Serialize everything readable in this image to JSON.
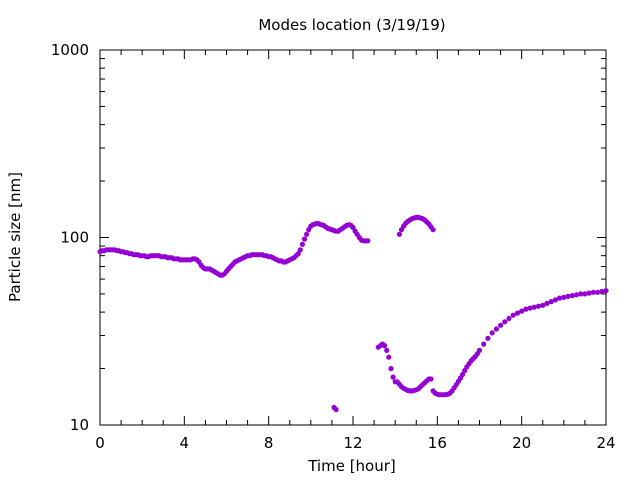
{
  "chart_data": {
    "type": "scatter",
    "title": "Modes location (3/19/19)",
    "xlabel": "Time [hour]",
    "ylabel": "Particle size [nm]",
    "xlim": [
      0,
      24
    ],
    "ylim": [
      10,
      1000
    ],
    "yscale": "log",
    "xticks": [
      "0",
      "4",
      "8",
      "12",
      "16",
      "20",
      "24"
    ],
    "xtick_values": [
      0,
      4,
      8,
      12,
      16,
      20,
      24
    ],
    "yticks": [
      "10",
      "100",
      "1000"
    ],
    "ytick_values": [
      10,
      100,
      1000
    ],
    "grid": false,
    "legend": "none",
    "marker_color": "#9400d3",
    "series": [
      {
        "x": [
          0.0,
          0.1,
          0.2,
          0.3,
          0.4,
          0.5,
          0.6,
          0.7,
          0.8,
          0.9,
          1.0,
          1.1,
          1.2,
          1.3,
          1.4,
          1.5,
          1.6,
          1.7,
          1.8,
          1.9,
          2.0,
          2.1,
          2.2,
          2.3,
          2.4,
          2.5,
          2.6,
          2.7,
          2.8,
          2.9,
          3.0,
          3.1,
          3.2,
          3.3,
          3.4,
          3.5,
          3.6,
          3.7,
          3.8,
          3.9,
          4.0,
          4.1,
          4.2,
          4.3,
          4.4,
          4.5,
          4.6,
          4.7,
          4.8,
          4.9,
          5.0,
          5.1,
          5.2,
          5.3,
          5.4,
          5.5,
          5.6,
          5.7,
          5.8,
          5.9,
          6.0,
          6.1,
          6.2,
          6.3,
          6.4,
          6.5,
          6.6,
          6.7,
          6.8,
          6.9,
          7.0,
          7.1,
          7.2,
          7.3,
          7.4,
          7.5,
          7.6,
          7.7,
          7.8,
          7.9,
          8.0,
          8.1,
          8.2,
          8.3,
          8.4,
          8.5,
          8.6,
          8.7,
          8.8,
          8.9,
          9.0,
          9.1,
          9.2,
          9.3,
          9.4,
          9.5,
          9.6,
          9.7,
          9.8,
          9.9,
          10.0,
          10.1,
          10.2,
          10.3,
          10.4,
          10.5,
          10.6,
          10.7,
          10.8,
          10.9,
          11.0,
          11.1,
          11.2,
          11.3,
          11.4,
          11.5,
          11.6,
          11.7,
          11.8,
          11.9,
          12.0,
          12.1,
          12.2,
          12.3,
          12.4,
          12.5,
          12.6,
          12.7
        ],
        "y": [
          84,
          85,
          85,
          86,
          86,
          86,
          86,
          86,
          85,
          85,
          84,
          84,
          83,
          83,
          82,
          82,
          81,
          81,
          81,
          80,
          80,
          80,
          79,
          79,
          80,
          80,
          80,
          80,
          80,
          79,
          79,
          79,
          78,
          78,
          78,
          77,
          77,
          77,
          76,
          76,
          76,
          76,
          76,
          76,
          77,
          77,
          76,
          74,
          71,
          69,
          68,
          68,
          68,
          67,
          66,
          65,
          64,
          63,
          63,
          64,
          66,
          68,
          70,
          72,
          74,
          75,
          76,
          77,
          78,
          79,
          80,
          80,
          81,
          81,
          81,
          81,
          81,
          81,
          80,
          80,
          79,
          79,
          78,
          77,
          76,
          75,
          75,
          74,
          74,
          75,
          76,
          77,
          78,
          80,
          82,
          86,
          92,
          98,
          104,
          110,
          115,
          117,
          118,
          119,
          118,
          117,
          116,
          114,
          112,
          111,
          110,
          109,
          108,
          108,
          110,
          112,
          114,
          116,
          117,
          116,
          113,
          108,
          104,
          100,
          97,
          96,
          96,
          96
        ]
      },
      {
        "x": [
          11.1,
          11.2
        ],
        "y": [
          12.4,
          12.1
        ]
      },
      {
        "x": [
          14.2,
          14.3,
          14.4,
          14.5,
          14.6,
          14.7,
          14.8,
          14.9,
          15.0,
          15.1,
          15.2,
          15.3,
          15.4,
          15.5,
          15.6,
          15.7,
          15.8
        ],
        "y": [
          104,
          110,
          115,
          119,
          122,
          124,
          126,
          127,
          128,
          128,
          127,
          126,
          124,
          121,
          118,
          114,
          110
        ]
      },
      {
        "x": [
          13.2,
          13.3,
          13.4,
          13.5,
          13.6,
          13.7,
          13.8,
          13.9,
          14.0,
          14.1,
          14.2,
          14.3,
          14.4,
          14.5,
          14.6,
          14.7,
          14.8,
          14.9,
          15.0,
          15.1,
          15.2,
          15.3,
          15.4,
          15.5,
          15.6,
          15.7,
          15.8,
          15.9,
          16.0,
          16.1,
          16.2,
          16.3,
          16.4,
          16.5,
          16.6,
          16.7,
          16.8,
          16.9,
          17.0,
          17.1,
          17.2,
          17.3,
          17.4,
          17.5,
          17.6,
          17.7,
          17.8,
          17.9,
          18.0,
          18.2,
          18.4,
          18.6,
          18.8,
          19.0,
          19.2,
          19.4,
          19.6,
          19.8,
          20.0,
          20.2,
          20.4,
          20.6,
          20.8,
          21.0,
          21.2,
          21.4,
          21.6,
          21.8,
          22.0,
          22.2,
          22.4,
          22.6,
          22.8,
          23.0,
          23.2,
          23.4,
          23.6,
          23.8,
          24.0
        ],
        "y": [
          26,
          26.5,
          27,
          26.5,
          25,
          23,
          20,
          18,
          17,
          17,
          16.5,
          16,
          15.7,
          15.5,
          15.3,
          15.2,
          15.2,
          15.3,
          15.4,
          15.6,
          16,
          16.4,
          16.8,
          17.2,
          17.6,
          17.6,
          15.2,
          14.8,
          14.6,
          14.5,
          14.5,
          14.5,
          14.5,
          14.6,
          14.8,
          15.2,
          15.8,
          16.4,
          17.1,
          17.8,
          18.6,
          19.5,
          20.4,
          21.2,
          22,
          22.6,
          23.2,
          24,
          25,
          27,
          29,
          31,
          32.5,
          34,
          35.5,
          37,
          38.5,
          39.5,
          40.5,
          41.5,
          42,
          42.5,
          43,
          43.5,
          44.5,
          45.5,
          46.5,
          47.5,
          48,
          48.5,
          49,
          49.5,
          50,
          50,
          50.5,
          51,
          51,
          51.5,
          52
        ]
      }
    ]
  }
}
